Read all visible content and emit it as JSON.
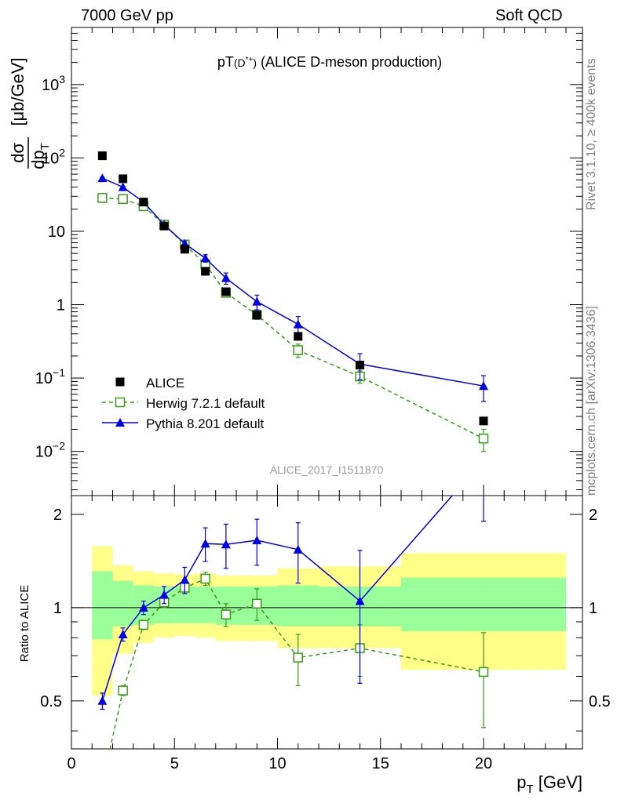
{
  "header": {
    "energy_label": "7000 GeV pp",
    "process_label": "Soft QCD"
  },
  "side": {
    "rivet_label": "Rivet 3.1.10, ≥ 400k events",
    "source_label": "mcplots.cern.ch [arXiv:1306.3436]"
  },
  "chart_data": {
    "type": "scatter",
    "title": "pT(D*+) (ALICE D-meson production)",
    "analysis_label": "ALICE_2017_I1511870",
    "colors": {
      "ALICE": "#000000",
      "Herwig": "#3a9a1a",
      "Pythia": "#0000e0",
      "band_inner": "#99ff99",
      "band_outer": "#ffff88"
    },
    "main_panel": {
      "ylabel": "dσ/dp_T [μb/GeV]",
      "yscale": "log",
      "ylim": [
        0.0025,
        6000
      ],
      "xlim": [
        0,
        24.8
      ],
      "yticks": [
        {
          "v": 0.01,
          "base": "10",
          "exp": "−2"
        },
        {
          "v": 0.1,
          "base": "10",
          "exp": "−1"
        },
        {
          "v": 1,
          "base": "1",
          "exp": ""
        },
        {
          "v": 10,
          "base": "10",
          "exp": ""
        },
        {
          "v": 100,
          "base": "10",
          "exp": "2"
        },
        {
          "v": 1000,
          "base": "10",
          "exp": "3"
        }
      ],
      "legend": {
        "position": "bottom-left",
        "entries": [
          "ALICE",
          "Herwig 7.2.1 default",
          "Pythia 8.201 default"
        ]
      },
      "series": [
        {
          "name": "ALICE",
          "x": [
            1.5,
            2.5,
            3.5,
            4.5,
            5.5,
            6.5,
            7.5,
            9,
            11,
            14,
            20
          ],
          "y": [
            107,
            52,
            25,
            11.8,
            5.7,
            2.85,
            1.5,
            0.72,
            0.37,
            0.15,
            0.026
          ]
        },
        {
          "name": "Herwig 7.2.1 default",
          "x": [
            1.5,
            2.5,
            3.5,
            4.5,
            5.5,
            6.5,
            7.5,
            9,
            11,
            14,
            20
          ],
          "y": [
            28.5,
            27.5,
            22,
            12.3,
            6.6,
            3.55,
            1.45,
            0.73,
            0.24,
            0.105,
            0.015
          ],
          "yerr": [
            0.8,
            0.8,
            0.8,
            0.5,
            0.4,
            0.3,
            0.15,
            0.1,
            0.05,
            0.02,
            0.005
          ]
        },
        {
          "name": "Pythia 8.201 default",
          "x": [
            1.5,
            2.5,
            3.5,
            4.5,
            5.5,
            6.5,
            7.5,
            9,
            11,
            14,
            20
          ],
          "y": [
            53,
            40,
            25,
            12.3,
            6.8,
            4.3,
            2.3,
            1.1,
            0.54,
            0.155,
            0.078
          ],
          "yerr": [
            1,
            1,
            0.8,
            0.5,
            0.5,
            0.5,
            0.4,
            0.25,
            0.15,
            0.06,
            0.03
          ]
        }
      ]
    },
    "ratio_panel": {
      "ylabel": "Ratio to ALICE",
      "xlabel": "p_T [GeV]",
      "ylim": [
        0.35,
        2.3
      ],
      "xticks": [
        0,
        5,
        10,
        15,
        20
      ],
      "yticks": [
        0.5,
        1,
        2
      ],
      "bands": [
        {
          "x1": 1,
          "x2": 2,
          "inner": [
            0.79,
            1.31
          ],
          "outer": [
            0.52,
            1.58
          ]
        },
        {
          "x1": 2,
          "x2": 3,
          "inner": [
            0.87,
            1.22
          ],
          "outer": [
            0.71,
            1.37
          ]
        },
        {
          "x1": 3,
          "x2": 4,
          "inner": [
            0.88,
            1.18
          ],
          "outer": [
            0.77,
            1.31
          ]
        },
        {
          "x1": 4,
          "x2": 5,
          "inner": [
            0.89,
            1.17
          ],
          "outer": [
            0.8,
            1.29
          ]
        },
        {
          "x1": 5,
          "x2": 6,
          "inner": [
            0.89,
            1.17
          ],
          "outer": [
            0.81,
            1.28
          ]
        },
        {
          "x1": 6,
          "x2": 7,
          "inner": [
            0.89,
            1.17
          ],
          "outer": [
            0.8,
            1.29
          ]
        },
        {
          "x1": 7,
          "x2": 8,
          "inner": [
            0.88,
            1.17
          ],
          "outer": [
            0.78,
            1.27
          ]
        },
        {
          "x1": 8,
          "x2": 10,
          "inner": [
            0.88,
            1.17
          ],
          "outer": [
            0.78,
            1.27
          ]
        },
        {
          "x1": 10,
          "x2": 12,
          "inner": [
            0.87,
            1.18
          ],
          "outer": [
            0.74,
            1.34
          ]
        },
        {
          "x1": 12,
          "x2": 16,
          "inner": [
            0.87,
            1.17
          ],
          "outer": [
            0.74,
            1.36
          ]
        },
        {
          "x1": 16,
          "x2": 24,
          "inner": [
            0.84,
            1.25
          ],
          "outer": [
            0.63,
            1.5
          ]
        }
      ],
      "series": [
        {
          "name": "Herwig 7.2.1 default",
          "x": [
            1.5,
            2.5,
            3.5,
            4.5,
            5.5,
            6.5,
            7.5,
            9,
            11,
            14,
            20
          ],
          "y": [
            0.27,
            0.54,
            0.88,
            1.04,
            1.16,
            1.24,
            0.95,
            1.03,
            0.69,
            0.74,
            0.62
          ],
          "yerr": [
            0.01,
            0.02,
            0.03,
            0.04,
            0.05,
            0.06,
            0.08,
            0.12,
            0.13,
            0.14,
            0.21
          ]
        },
        {
          "name": "Pythia 8.201 default",
          "x": [
            1.5,
            2.5,
            3.5,
            4.5,
            5.5,
            6.5,
            7.5,
            9,
            11,
            14,
            20
          ],
          "y": [
            0.5,
            0.82,
            1.0,
            1.1,
            1.23,
            1.61,
            1.6,
            1.65,
            1.54,
            1.05,
            3.0
          ],
          "yerr": [
            0.03,
            0.04,
            0.05,
            0.07,
            0.12,
            0.2,
            0.26,
            0.28,
            0.34,
            0.48,
            1.1
          ]
        }
      ]
    }
  }
}
